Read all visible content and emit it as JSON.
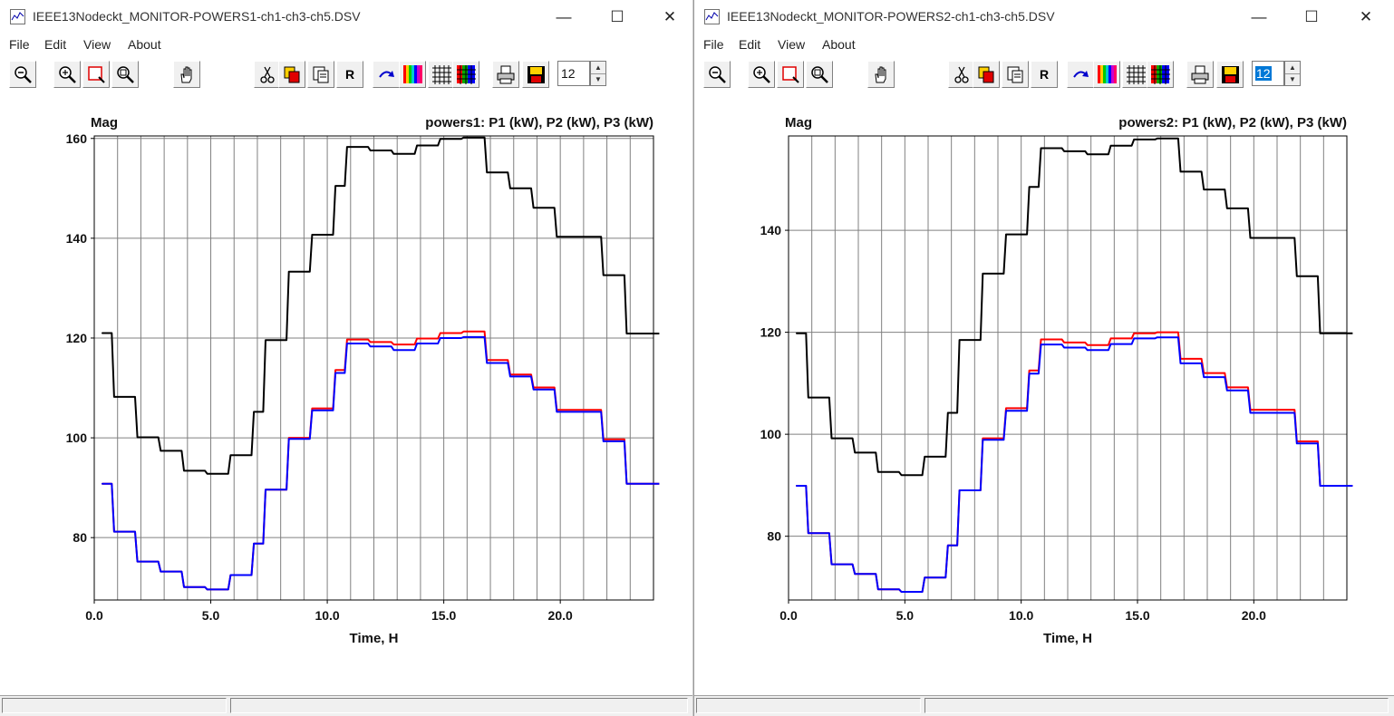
{
  "windows": [
    {
      "title": "IEEE13Nodeckt_MONITOR-POWERS1-ch1-ch3-ch5.DSV",
      "menu": [
        "File",
        "Edit",
        "View",
        "About"
      ],
      "font_size_value": "12",
      "font_size_selected": false
    },
    {
      "title": "IEEE13Nodeckt_MONITOR-POWERS2-ch1-ch3-ch5.DSV",
      "menu": [
        "File",
        "Edit",
        "View",
        "About"
      ],
      "font_size_value": "12",
      "font_size_selected": true
    }
  ],
  "window_controls": {
    "minimize": "—",
    "maximize": "☐",
    "close": "✕"
  },
  "toolbar_icons": [
    "zoom-out-icon",
    "zoom-in-icon",
    "zoom-box-icon",
    "zoom-fit-icon",
    "pan-hand-icon",
    "cut-icon",
    "copy-icon",
    "paste-icon",
    "refresh-r-icon",
    "redraw-arrow-icon",
    "color-bars-icon",
    "grid-icon",
    "color-grid-icon",
    "print-icon",
    "save-icon"
  ],
  "toolbar_text": {
    "refresh_label": "R"
  },
  "colors": {
    "p1": "#000000",
    "p2": "#ff0000",
    "p3": "#0000ff",
    "grid": "#808080"
  },
  "chart_data": [
    {
      "type": "line",
      "ylabel": "Mag",
      "title": "powers1:  P1 (kW),  P2 (kW),  P3 (kW)",
      "xlabel": "Time, H",
      "xlim": [
        0,
        24
      ],
      "ylim": [
        67.5,
        160.5
      ],
      "xticks": [
        0,
        5,
        10,
        15,
        20
      ],
      "xtick_labels": [
        "0.0",
        "5.0",
        "10.0",
        "15.0",
        "20.0"
      ],
      "yticks": [
        80,
        100,
        120,
        140,
        160
      ],
      "ytick_labels": [
        "80",
        "100",
        "120",
        "140",
        "160"
      ],
      "grid": true,
      "x": [
        0.5,
        1,
        1.5,
        2,
        2.5,
        3,
        3.5,
        4,
        4.5,
        5,
        5.5,
        6,
        6.5,
        7,
        7.5,
        8,
        8.5,
        9,
        9.5,
        10,
        10.5,
        11,
        11.5,
        12,
        12.5,
        13,
        13.5,
        14,
        14.5,
        15,
        15.5,
        16,
        16.5,
        17,
        17.5,
        18,
        18.5,
        19,
        19.5,
        20,
        20.5,
        21,
        21.5,
        22,
        22.5,
        23,
        23.5,
        24
      ],
      "series": [
        {
          "name": "P1 (kW)",
          "color": "#000000",
          "values": [
            121,
            108.2,
            108.2,
            100.1,
            100.1,
            97.4,
            97.4,
            93.4,
            93.4,
            92.8,
            92.8,
            96.5,
            96.5,
            105.2,
            119.6,
            119.6,
            133.3,
            133.3,
            140.7,
            140.7,
            150.5,
            158.3,
            158.3,
            157.6,
            157.6,
            156.9,
            156.9,
            158.6,
            158.6,
            159.9,
            159.9,
            160.2,
            160.2,
            153.2,
            153.2,
            150.0,
            150.0,
            146.1,
            146.1,
            140.3,
            140.3,
            140.3,
            140.3,
            132.6,
            132.6,
            120.9,
            120.9,
            120.9
          ]
        },
        {
          "name": "P2 (kW)",
          "color": "#ff0000",
          "values": [
            90.8,
            81.2,
            81.2,
            75.2,
            75.2,
            73.2,
            73.2,
            70.1,
            70.1,
            69.6,
            69.6,
            72.5,
            72.5,
            78.8,
            89.6,
            89.6,
            100.0,
            100.0,
            105.9,
            105.9,
            113.6,
            119.7,
            119.7,
            119.2,
            119.2,
            118.7,
            118.7,
            119.9,
            119.9,
            121.0,
            121.0,
            121.3,
            121.3,
            115.6,
            115.6,
            112.7,
            112.7,
            110.1,
            110.1,
            105.6,
            105.6,
            105.6,
            105.6,
            99.7,
            99.7,
            90.8,
            90.8,
            90.8
          ]
        },
        {
          "name": "P3 (kW)",
          "color": "#0000ff",
          "values": [
            90.8,
            81.2,
            81.2,
            75.2,
            75.2,
            73.2,
            73.2,
            70.1,
            70.1,
            69.6,
            69.6,
            72.5,
            72.5,
            78.8,
            89.6,
            89.6,
            99.8,
            99.8,
            105.5,
            105.5,
            113.0,
            118.9,
            118.9,
            118.3,
            118.3,
            117.6,
            117.6,
            118.9,
            118.9,
            120.0,
            120.0,
            120.2,
            120.2,
            115.0,
            115.0,
            112.3,
            112.3,
            109.7,
            109.7,
            105.2,
            105.2,
            105.2,
            105.2,
            99.3,
            99.3,
            90.8,
            90.8,
            90.8
          ]
        }
      ]
    },
    {
      "type": "line",
      "ylabel": "Mag",
      "title": "powers2:  P1 (kW),  P2 (kW),  P3 (kW)",
      "xlabel": "Time, H",
      "xlim": [
        0,
        24
      ],
      "ylim": [
        67.5,
        158.5
      ],
      "xticks": [
        0,
        5,
        10,
        15,
        20
      ],
      "xtick_labels": [
        "0.0",
        "5.0",
        "10.0",
        "15.0",
        "20.0"
      ],
      "yticks": [
        80,
        100,
        120,
        140
      ],
      "ytick_labels": [
        "80",
        "100",
        "120",
        "140"
      ],
      "grid": true,
      "x": [
        0.5,
        1,
        1.5,
        2,
        2.5,
        3,
        3.5,
        4,
        4.5,
        5,
        5.5,
        6,
        6.5,
        7,
        7.5,
        8,
        8.5,
        9,
        9.5,
        10,
        10.5,
        11,
        11.5,
        12,
        12.5,
        13,
        13.5,
        14,
        14.5,
        15,
        15.5,
        16,
        16.5,
        17,
        17.5,
        18,
        18.5,
        19,
        19.5,
        20,
        20.5,
        21,
        21.5,
        22,
        22.5,
        23,
        23.5,
        24
      ],
      "series": [
        {
          "name": "P1 (kW)",
          "color": "#000000",
          "values": [
            119.8,
            107.2,
            107.2,
            99.2,
            99.2,
            96.4,
            96.4,
            92.6,
            92.6,
            92.0,
            92.0,
            95.6,
            95.6,
            104.2,
            118.5,
            118.5,
            131.5,
            131.5,
            139.2,
            139.2,
            148.5,
            156.1,
            156.1,
            155.5,
            155.5,
            154.9,
            154.9,
            156.6,
            156.6,
            157.8,
            157.8,
            158.0,
            158.0,
            151.5,
            151.5,
            148.0,
            148.0,
            144.3,
            144.3,
            138.5,
            138.5,
            138.5,
            138.5,
            131.0,
            131.0,
            119.8,
            119.8,
            119.8
          ]
        },
        {
          "name": "P2 (kW)",
          "color": "#ff0000",
          "values": [
            89.9,
            80.6,
            80.6,
            74.5,
            74.5,
            72.6,
            72.6,
            69.6,
            69.6,
            69.1,
            69.1,
            71.9,
            71.9,
            78.2,
            89.0,
            89.0,
            99.2,
            99.2,
            105.1,
            105.1,
            112.5,
            118.6,
            118.6,
            118.0,
            118.0,
            117.5,
            117.5,
            118.8,
            118.8,
            119.8,
            119.8,
            120.0,
            120.0,
            114.8,
            114.8,
            112.0,
            112.0,
            109.2,
            109.2,
            104.8,
            104.8,
            104.8,
            104.8,
            98.6,
            98.6,
            89.9,
            89.9,
            89.9
          ]
        },
        {
          "name": "P3 (kW)",
          "color": "#0000ff",
          "values": [
            89.9,
            80.6,
            80.6,
            74.5,
            74.5,
            72.6,
            72.6,
            69.6,
            69.6,
            69.1,
            69.1,
            71.9,
            71.9,
            78.2,
            89.0,
            89.0,
            98.9,
            98.9,
            104.6,
            104.6,
            111.9,
            117.6,
            117.6,
            117.0,
            117.0,
            116.5,
            116.5,
            117.7,
            117.7,
            118.8,
            118.8,
            119.0,
            119.0,
            113.9,
            113.9,
            111.2,
            111.2,
            108.6,
            108.6,
            104.2,
            104.2,
            104.2,
            104.2,
            98.2,
            98.2,
            89.9,
            89.9,
            89.9
          ]
        }
      ]
    }
  ]
}
